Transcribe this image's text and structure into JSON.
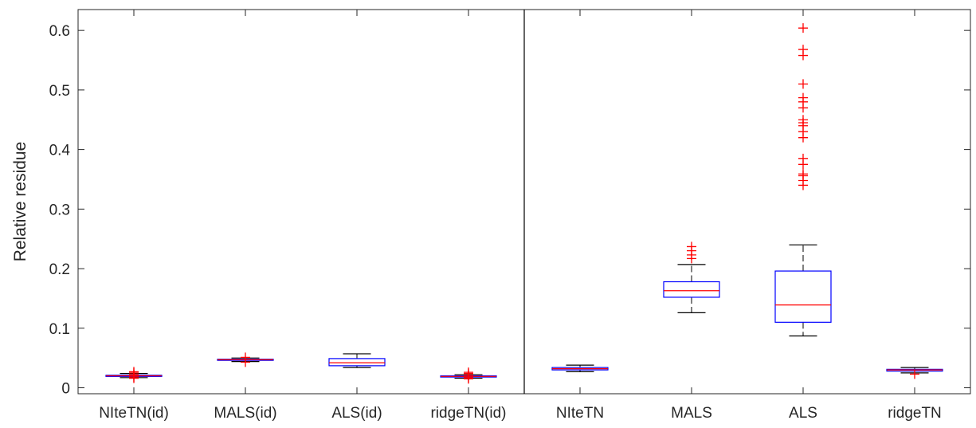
{
  "chart_data": {
    "type": "box",
    "ylabel": "Relative residue",
    "xlabel": "",
    "ylim": [
      -0.01,
      0.635
    ],
    "yticks": [
      0,
      0.1,
      0.2,
      0.3,
      0.4,
      0.5,
      0.6
    ],
    "ytick_labels": [
      "0",
      "0.1",
      "0.2",
      "0.3",
      "0.4",
      "0.5",
      "0.6"
    ],
    "grid": false,
    "divider_after_category": 4,
    "colors": {
      "box": "#0000ff",
      "median": "#ff0000",
      "whisker": "#000000",
      "outlier": "#ff0000",
      "axis": "#262626"
    },
    "categories": [
      "NIteTN(id)",
      "MALS(id)",
      "ALS(id)",
      "ridgeTN(id)",
      "NIteTN",
      "MALS",
      "ALS",
      "ridgeTN"
    ],
    "boxes": [
      {
        "name": "NIteTN(id)",
        "whisker_low": 0.017,
        "q1": 0.019,
        "median": 0.02,
        "q3": 0.021,
        "whisker_high": 0.024,
        "outliers": [
          0.016,
          0.018,
          0.022,
          0.025,
          0.027
        ]
      },
      {
        "name": "MALS(id)",
        "whisker_low": 0.044,
        "q1": 0.046,
        "median": 0.047,
        "q3": 0.048,
        "whisker_high": 0.05,
        "outliers": [
          0.043,
          0.051
        ]
      },
      {
        "name": "ALS(id)",
        "whisker_low": 0.034,
        "q1": 0.037,
        "median": 0.042,
        "q3": 0.049,
        "whisker_high": 0.057,
        "outliers": []
      },
      {
        "name": "ridgeTN(id)",
        "whisker_low": 0.016,
        "q1": 0.018,
        "median": 0.019,
        "q3": 0.02,
        "whisker_high": 0.022,
        "outliers": [
          0.015,
          0.017,
          0.021,
          0.024,
          0.026
        ]
      },
      {
        "name": "NIteTN",
        "whisker_low": 0.027,
        "q1": 0.03,
        "median": 0.032,
        "q3": 0.034,
        "whisker_high": 0.038,
        "outliers": []
      },
      {
        "name": "MALS",
        "whisker_low": 0.126,
        "q1": 0.152,
        "median": 0.163,
        "q3": 0.178,
        "whisker_high": 0.207,
        "outliers": [
          0.217,
          0.223,
          0.23,
          0.237
        ]
      },
      {
        "name": "ALS",
        "whisker_low": 0.087,
        "q1": 0.11,
        "median": 0.139,
        "q3": 0.196,
        "whisker_high": 0.24,
        "outliers": [
          0.34,
          0.348,
          0.356,
          0.359,
          0.375,
          0.385,
          0.42,
          0.43,
          0.44,
          0.445,
          0.45,
          0.47,
          0.48,
          0.487,
          0.51,
          0.558,
          0.568,
          0.604
        ]
      },
      {
        "name": "ridgeTN",
        "whisker_low": 0.025,
        "q1": 0.028,
        "median": 0.03,
        "q3": 0.031,
        "whisker_high": 0.034,
        "outliers": [
          0.023
        ]
      }
    ]
  }
}
